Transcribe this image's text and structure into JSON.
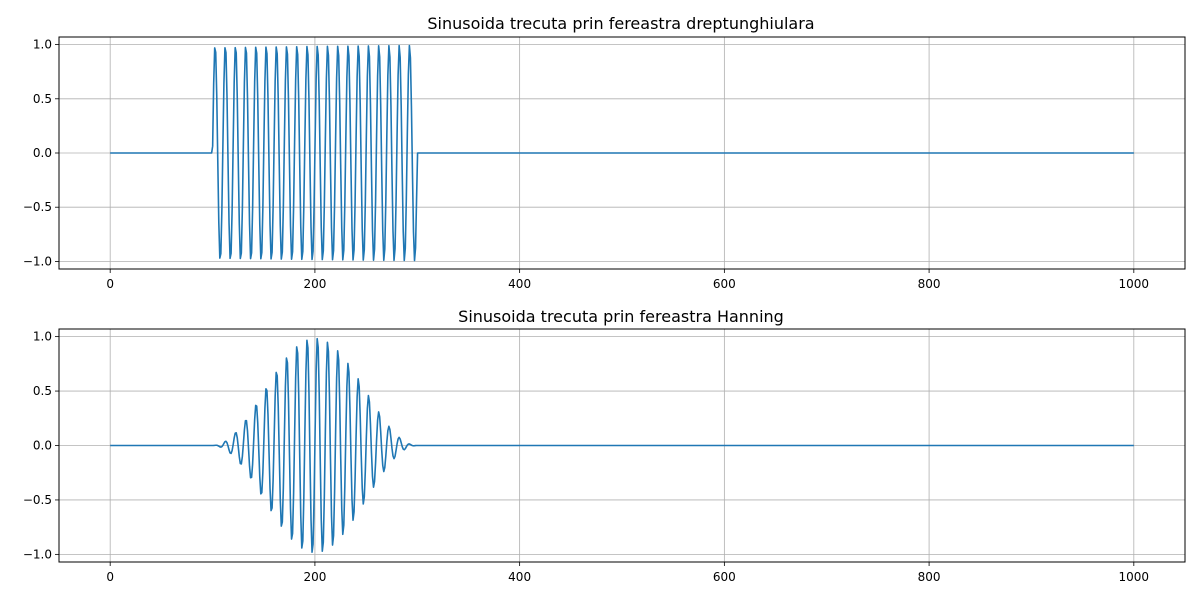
{
  "chart_data": [
    {
      "type": "line",
      "title": "Sinusoida trecuta prin fereastra dreptunghiulara",
      "xlabel": "",
      "ylabel": "",
      "xlim": [
        -50,
        1050
      ],
      "ylim": [
        -1.07,
        1.07
      ],
      "xticks": [
        0,
        200,
        400,
        600,
        800,
        1000
      ],
      "xtick_labels": [
        "0",
        "200",
        "400",
        "600",
        "800",
        "1000"
      ],
      "yticks": [
        -1.0,
        -0.5,
        0.0,
        0.5,
        1.0
      ],
      "ytick_labels": [
        "−1.0",
        "−0.5",
        "0.0",
        "0.5",
        "1.0"
      ],
      "grid": true,
      "legend": "none",
      "series": [
        {
          "window": "rectangular",
          "color": "#1f77b4",
          "x_range": [
            0,
            1000
          ],
          "n_samples": 1000,
          "sine_period": 10,
          "window_start": 100,
          "window_end": 300,
          "amplitude": 1.0
        }
      ]
    },
    {
      "type": "line",
      "title": "Sinusoida trecuta prin fereastra Hanning",
      "xlabel": "",
      "ylabel": "",
      "xlim": [
        -50,
        1050
      ],
      "ylim": [
        -1.07,
        1.07
      ],
      "xticks": [
        0,
        200,
        400,
        600,
        800,
        1000
      ],
      "xtick_labels": [
        "0",
        "200",
        "400",
        "600",
        "800",
        "1000"
      ],
      "yticks": [
        -1.0,
        -0.5,
        0.0,
        0.5,
        1.0
      ],
      "ytick_labels": [
        "−1.0",
        "−0.5",
        "0.0",
        "0.5",
        "1.0"
      ],
      "grid": true,
      "legend": "none",
      "series": [
        {
          "window": "hanning",
          "color": "#1f77b4",
          "x_range": [
            0,
            1000
          ],
          "n_samples": 1000,
          "sine_period": 10,
          "window_start": 100,
          "window_end": 300,
          "amplitude": 1.0
        }
      ]
    }
  ]
}
